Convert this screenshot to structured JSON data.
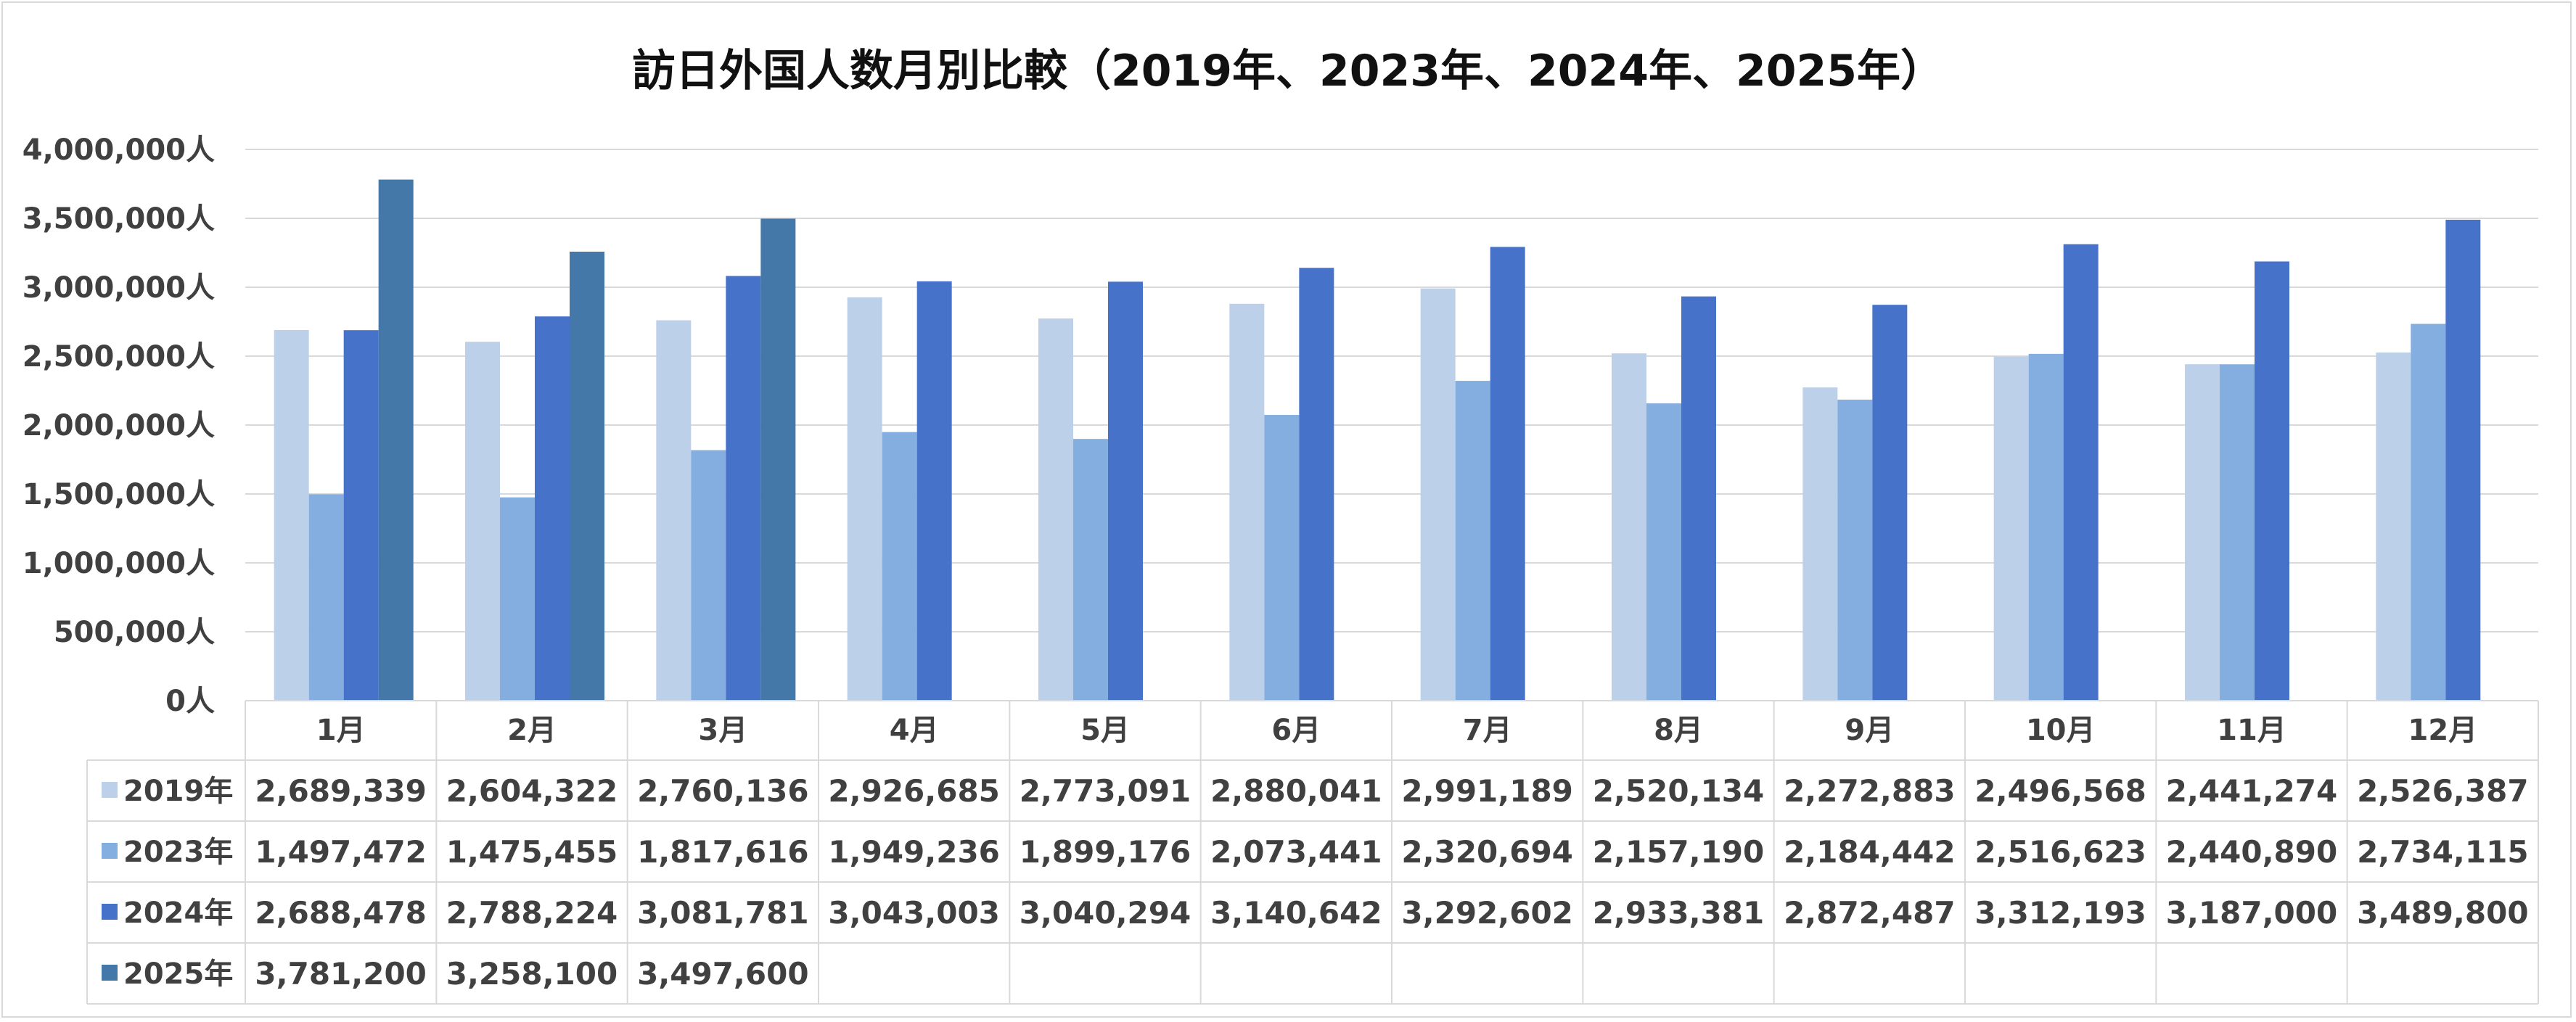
{
  "chart_data": {
    "type": "bar",
    "title": "訪日外国人数月別比較（2019年、2023年、2024年、2025年）",
    "xlabel": "",
    "ylabel": "",
    "ylim": [
      0,
      4000000
    ],
    "yticks": [
      "0人",
      "500,000人",
      "1,000,000人",
      "1,500,000人",
      "2,000,000人",
      "2,500,000人",
      "3,000,000人",
      "3,500,000人",
      "4,000,000人"
    ],
    "grid": true,
    "legend": "data-table",
    "categories": [
      "1月",
      "2月",
      "3月",
      "4月",
      "5月",
      "6月",
      "7月",
      "8月",
      "9月",
      "10月",
      "11月",
      "12月"
    ],
    "series": [
      {
        "name": "2019年",
        "color": "#bdd0ea",
        "values": [
          2689339,
          2604322,
          2760136,
          2926685,
          2773091,
          2880041,
          2991189,
          2520134,
          2272883,
          2496568,
          2441274,
          2526387
        ],
        "labels": [
          "2,689,339",
          "2,604,322",
          "2,760,136",
          "2,926,685",
          "2,773,091",
          "2,880,041",
          "2,991,189",
          "2,520,134",
          "2,272,883",
          "2,496,568",
          "2,441,274",
          "2,526,387"
        ]
      },
      {
        "name": "2023年",
        "color": "#84aedf",
        "values": [
          1497472,
          1475455,
          1817616,
          1949236,
          1899176,
          2073441,
          2320694,
          2157190,
          2184442,
          2516623,
          2440890,
          2734115
        ],
        "labels": [
          "1,497,472",
          "1,475,455",
          "1,817,616",
          "1,949,236",
          "1,899,176",
          "2,073,441",
          "2,320,694",
          "2,157,190",
          "2,184,442",
          "2,516,623",
          "2,440,890",
          "2,734,115"
        ]
      },
      {
        "name": "2024年",
        "color": "#4673c9",
        "values": [
          2688478,
          2788224,
          3081781,
          3043003,
          3040294,
          3140642,
          3292602,
          2933381,
          2872487,
          3312193,
          3187000,
          3489800
        ],
        "labels": [
          "2,688,478",
          "2,788,224",
          "3,081,781",
          "3,043,003",
          "3,040,294",
          "3,140,642",
          "3,292,602",
          "2,933,381",
          "2,872,487",
          "3,312,193",
          "3,187,000",
          "3,489,800"
        ]
      },
      {
        "name": "2025年",
        "color": "#4478a8",
        "values": [
          3781200,
          3258100,
          3497600,
          null,
          null,
          null,
          null,
          null,
          null,
          null,
          null,
          null
        ],
        "labels": [
          "3,781,200",
          "3,258,100",
          "3,497,600",
          "",
          "",
          "",
          "",
          "",
          "",
          "",
          "",
          ""
        ]
      }
    ]
  }
}
